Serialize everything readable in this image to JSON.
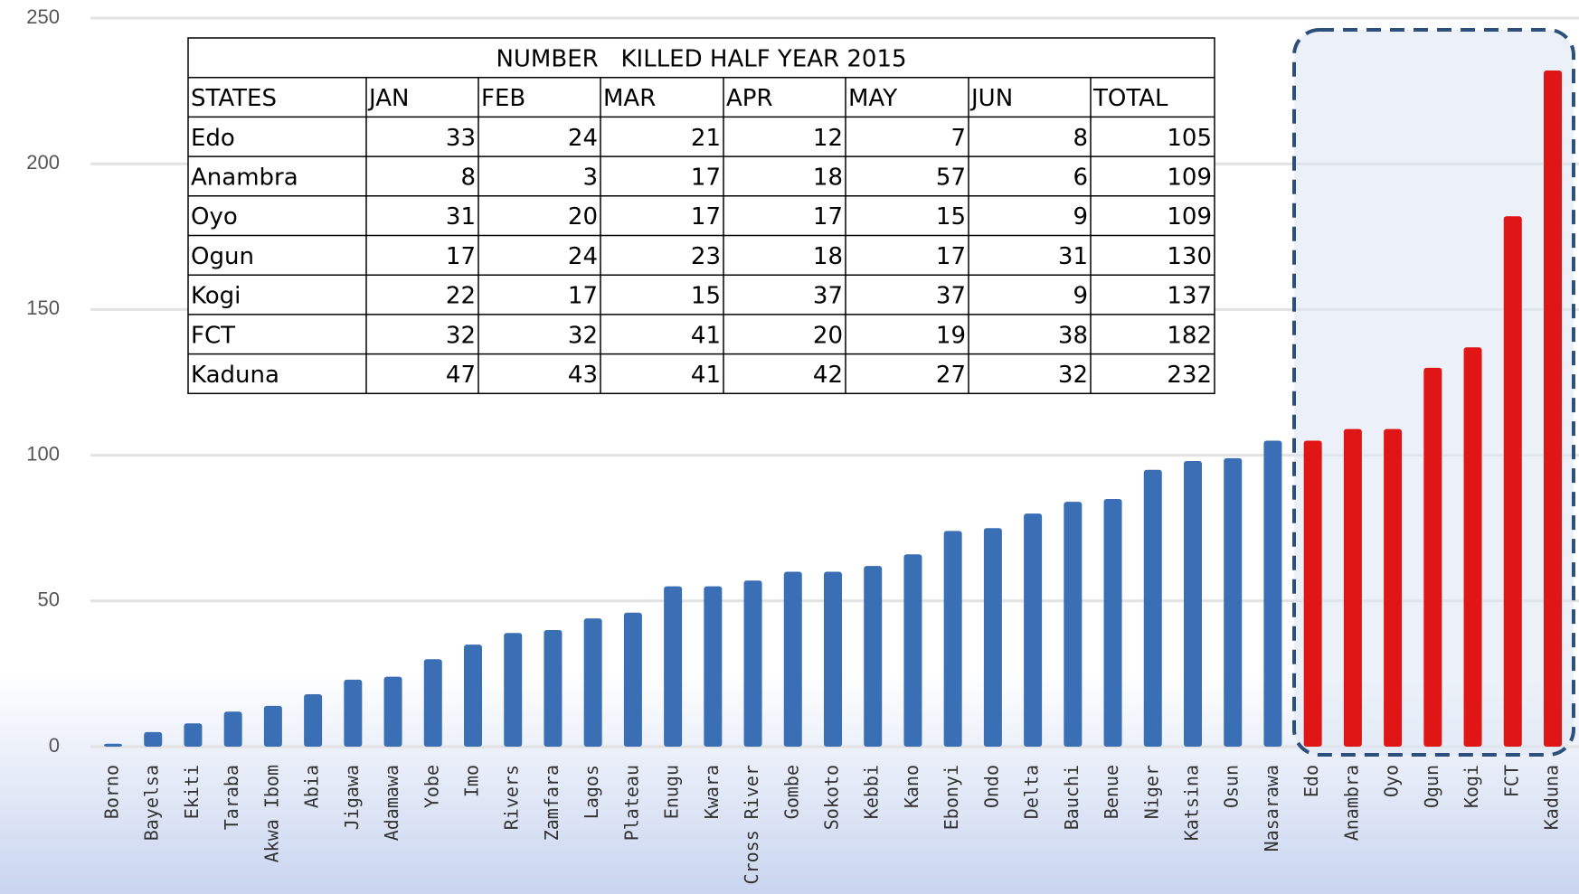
{
  "chart_data": {
    "type": "bar",
    "categories": [
      "Borno",
      "Bayelsa",
      "Ekiti",
      "Taraba",
      "Akwa Ibom",
      "Abia",
      "Jigawa",
      "Adamawa",
      "Yobe",
      "Imo",
      "Rivers",
      "Zamfara",
      "Lagos",
      "Plateau",
      "Enugu",
      "Kwara",
      "Cross River",
      "Gombe",
      "Sokoto",
      "Kebbi",
      "Kano",
      "Ebonyi",
      "Ondo",
      "Delta",
      "Bauchi",
      "Benue",
      "Niger",
      "Katsina",
      "Osun",
      "Nasarawa",
      "Edo",
      "Anambra",
      "Oyo",
      "Ogun",
      "Kogi",
      "FCT",
      "Kaduna"
    ],
    "values": [
      1,
      5,
      8,
      12,
      14,
      18,
      23,
      24,
      30,
      35,
      39,
      40,
      44,
      46,
      55,
      55,
      57,
      60,
      60,
      62,
      66,
      74,
      75,
      80,
      84,
      85,
      95,
      98,
      99,
      105,
      105,
      109,
      109,
      130,
      137,
      182,
      232
    ],
    "colors": [
      "#3a6fb5",
      "#3a6fb5",
      "#3a6fb5",
      "#3a6fb5",
      "#3a6fb5",
      "#3a6fb5",
      "#3a6fb5",
      "#3a6fb5",
      "#3a6fb5",
      "#3a6fb5",
      "#3a6fb5",
      "#3a6fb5",
      "#3a6fb5",
      "#3a6fb5",
      "#3a6fb5",
      "#3a6fb5",
      "#3a6fb5",
      "#3a6fb5",
      "#3a6fb5",
      "#3a6fb5",
      "#3a6fb5",
      "#3a6fb5",
      "#3a6fb5",
      "#3a6fb5",
      "#3a6fb5",
      "#3a6fb5",
      "#3a6fb5",
      "#3a6fb5",
      "#3a6fb5",
      "#3a6fb5",
      "#e01515",
      "#e01515",
      "#e01515",
      "#e01515",
      "#e01515",
      "#e01515",
      "#e01515"
    ],
    "ylim": [
      0,
      250
    ],
    "yticks": [
      0,
      50,
      100,
      150,
      200,
      250
    ],
    "grid": true
  },
  "table": {
    "title": "NUMBER   KILLED HALF YEAR 2015",
    "columns": [
      "STATES",
      "JAN",
      "FEB",
      "MAR",
      "APR",
      "MAY",
      "JUN",
      "TOTAL"
    ],
    "rows": [
      [
        "Edo",
        33,
        24,
        21,
        12,
        7,
        8,
        105
      ],
      [
        "Anambra",
        8,
        3,
        17,
        18,
        57,
        6,
        109
      ],
      [
        "Oyo",
        31,
        20,
        17,
        17,
        15,
        9,
        109
      ],
      [
        "Ogun",
        17,
        24,
        23,
        18,
        17,
        31,
        130
      ],
      [
        "Kogi",
        22,
        17,
        15,
        37,
        37,
        9,
        137
      ],
      [
        "FCT",
        32,
        32,
        41,
        20,
        19,
        38,
        182
      ],
      [
        "Kaduna",
        47,
        43,
        41,
        42,
        27,
        32,
        232
      ]
    ]
  }
}
